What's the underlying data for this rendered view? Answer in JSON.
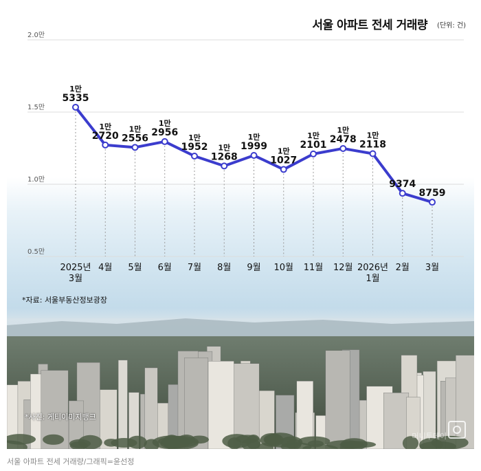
{
  "header": {
    "title": "서울 아파트 전세 거래량",
    "unit": "(단위: 건)"
  },
  "chart_data": {
    "type": "line",
    "title": "서울 아파트 전세 거래량",
    "unit": "(단위: 건)",
    "categories": [
      "2025년\n3월",
      "4월",
      "5월",
      "6월",
      "7월",
      "8월",
      "9월",
      "10월",
      "11월",
      "12월",
      "2026년\n1월",
      "2월",
      "3월"
    ],
    "values": [
      15335,
      12720,
      12556,
      12956,
      11952,
      11268,
      11999,
      11027,
      12101,
      12478,
      12118,
      9374,
      8759
    ],
    "labels": [
      "1만\n5335",
      "1만\n2720",
      "1만\n2556",
      "1만\n2956",
      "1만\n1952",
      "1만\n1268",
      "1만\n1999",
      "1만\n1027",
      "1만\n2101",
      "1만\n2478",
      "1만\n2118",
      "9374",
      "8759"
    ],
    "y_ticks": [
      5000,
      10000,
      15000,
      20000
    ],
    "y_tick_labels": [
      "0.5만",
      "1.0만",
      "1.5만",
      "2.0만"
    ],
    "ylim": [
      5000,
      20000
    ],
    "line_color": "#3b3ccd",
    "grid": true
  },
  "footnotes": {
    "source": "*자료: 서울부동산정보광장",
    "photo": "*사진: 게티이미지뱅크",
    "watermark": "머니투데이"
  },
  "credit": "서울 아파트 전세 거래량/그래픽=윤선정"
}
